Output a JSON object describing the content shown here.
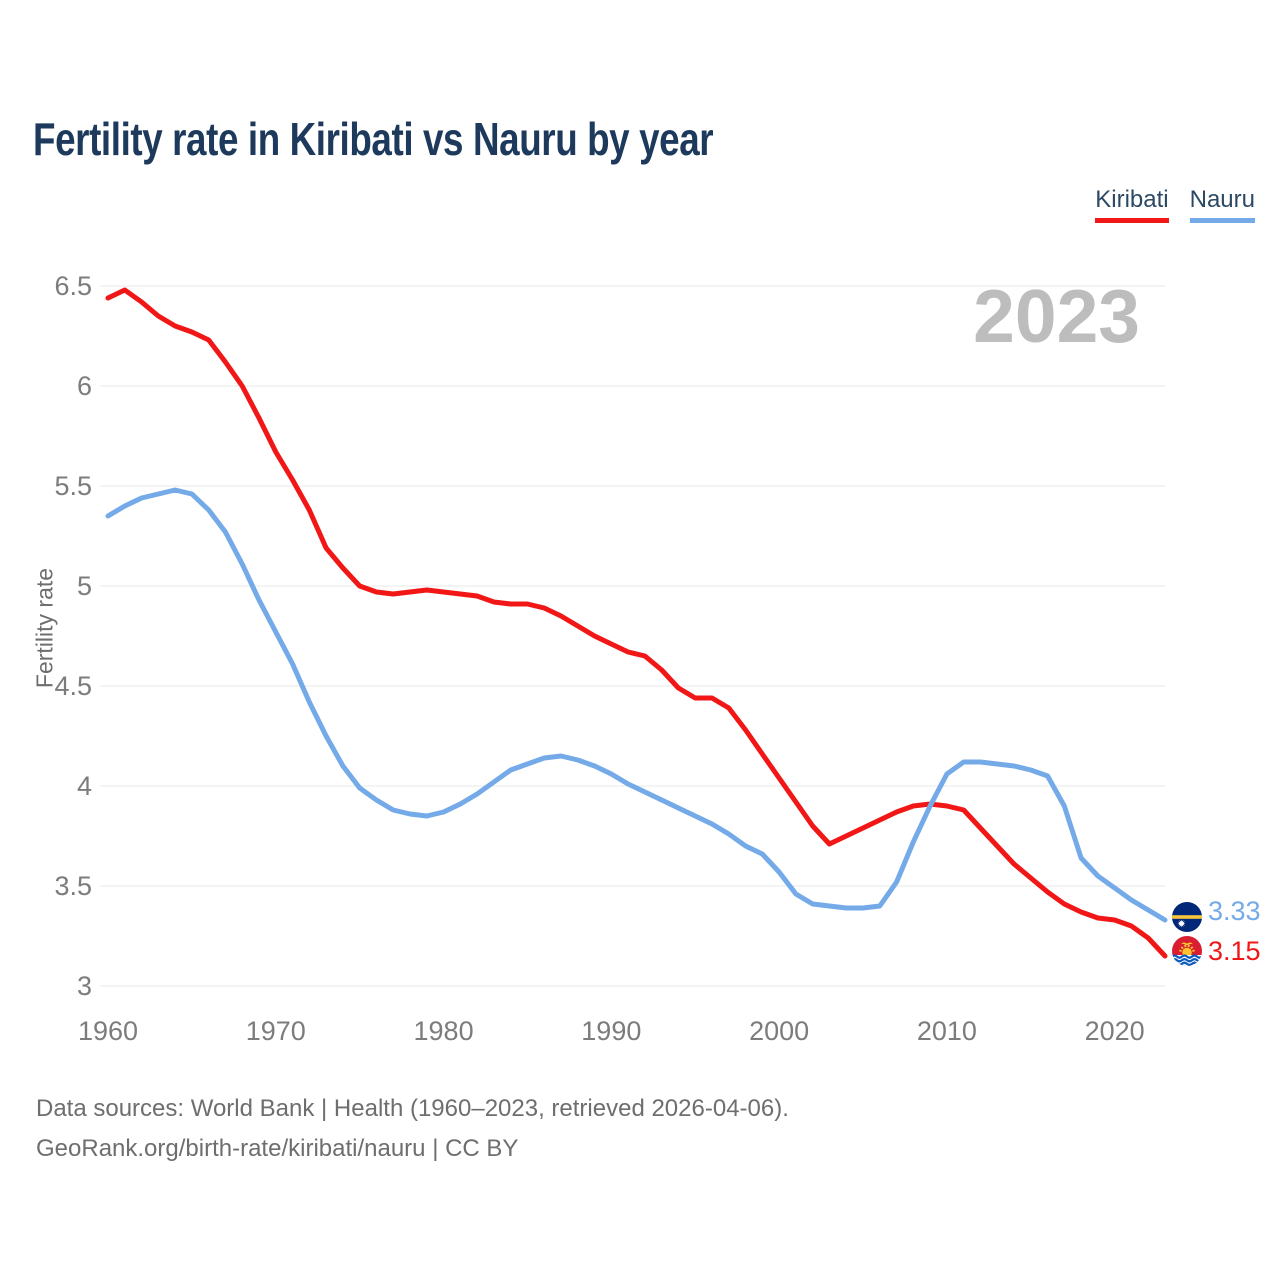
{
  "header": {
    "title": "Fertility rate in Kiribati vs Nauru by year"
  },
  "legend": {
    "items": [
      {
        "label": "Kiribati",
        "color": "#f11717"
      },
      {
        "label": "Nauru",
        "color": "#74aae8"
      }
    ]
  },
  "chart": {
    "watermark": "2023"
  },
  "chart_style": {
    "grid_color": "#e8e8e8",
    "tick_color": "#7c7c7c",
    "watermark_color": "#bdbdbd",
    "title_color": "#1d3a5c",
    "footer_color": "#6e6e6e",
    "kiribati_red": "#f11717",
    "nauru_blue": "#74aae8"
  },
  "y_axis": {
    "title": "Fertility rate",
    "ticks": [
      {
        "label": "6.5",
        "value": 6.5
      },
      {
        "label": "6",
        "value": 6.0
      },
      {
        "label": "5.5",
        "value": 5.5
      },
      {
        "label": "5",
        "value": 5.0
      },
      {
        "label": "4.5",
        "value": 4.5
      },
      {
        "label": "4",
        "value": 4.0
      },
      {
        "label": "3.5",
        "value": 3.5
      },
      {
        "label": "3",
        "value": 3.0
      }
    ]
  },
  "x_axis": {
    "ticks": [
      {
        "label": "1960",
        "value": 1960
      },
      {
        "label": "1970",
        "value": 1970
      },
      {
        "label": "1980",
        "value": 1980
      },
      {
        "label": "1990",
        "value": 1990
      },
      {
        "label": "2000",
        "value": 2000
      },
      {
        "label": "2010",
        "value": 2010
      },
      {
        "label": "2020",
        "value": 2020
      }
    ]
  },
  "end_labels": {
    "nauru": {
      "value": "3.33"
    },
    "kiribati": {
      "value": "3.15"
    }
  },
  "footer": {
    "line1": "Data sources: World Bank | Health (1960–2023, retrieved 2026-04-06).",
    "line2": "GeoRank.org/birth-rate/kiribati/nauru | CC BY"
  },
  "chart_data": {
    "type": "line",
    "title": "Fertility rate in Kiribati vs Nauru by year",
    "xlabel": "",
    "ylabel": "Fertility rate",
    "xlim": [
      1960,
      2023
    ],
    "ylim": [
      3,
      6.5
    ],
    "grid": "horizontal",
    "legend_position": "top-right",
    "watermark": "2023",
    "years": [
      1960,
      1961,
      1962,
      1963,
      1964,
      1965,
      1966,
      1967,
      1968,
      1969,
      1970,
      1971,
      1972,
      1973,
      1974,
      1975,
      1976,
      1977,
      1978,
      1979,
      1980,
      1981,
      1982,
      1983,
      1984,
      1985,
      1986,
      1987,
      1988,
      1989,
      1990,
      1991,
      1992,
      1993,
      1994,
      1995,
      1996,
      1997,
      1998,
      1999,
      2000,
      2001,
      2002,
      2003,
      2004,
      2005,
      2006,
      2007,
      2008,
      2009,
      2010,
      2011,
      2012,
      2013,
      2014,
      2015,
      2016,
      2017,
      2018,
      2019,
      2020,
      2021,
      2022,
      2023
    ],
    "series": [
      {
        "name": "Kiribati",
        "color": "#f11717",
        "end_value": 3.15,
        "values": [
          6.44,
          6.48,
          6.42,
          6.35,
          6.3,
          6.27,
          6.23,
          6.12,
          6.0,
          5.84,
          5.67,
          5.53,
          5.38,
          5.19,
          5.09,
          5.0,
          4.97,
          4.96,
          4.97,
          4.98,
          4.97,
          4.96,
          4.95,
          4.92,
          4.91,
          4.91,
          4.89,
          4.85,
          4.8,
          4.75,
          4.71,
          4.67,
          4.65,
          4.58,
          4.49,
          4.44,
          4.44,
          4.39,
          4.28,
          4.16,
          4.04,
          3.92,
          3.8,
          3.71,
          3.75,
          3.79,
          3.83,
          3.87,
          3.9,
          3.91,
          3.9,
          3.88,
          3.79,
          3.7,
          3.61,
          3.54,
          3.47,
          3.41,
          3.37,
          3.34,
          3.33,
          3.3,
          3.24,
          3.15
        ]
      },
      {
        "name": "Nauru",
        "color": "#74aae8",
        "end_value": 3.33,
        "values": [
          5.35,
          5.4,
          5.44,
          5.46,
          5.48,
          5.46,
          5.38,
          5.27,
          5.11,
          4.93,
          4.77,
          4.61,
          4.42,
          4.25,
          4.1,
          3.99,
          3.93,
          3.88,
          3.86,
          3.85,
          3.87,
          3.91,
          3.96,
          4.02,
          4.08,
          4.11,
          4.14,
          4.15,
          4.13,
          4.1,
          4.06,
          4.01,
          3.97,
          3.93,
          3.89,
          3.85,
          3.81,
          3.76,
          3.7,
          3.66,
          3.57,
          3.46,
          3.41,
          3.4,
          3.39,
          3.39,
          3.4,
          3.52,
          3.72,
          3.9,
          4.06,
          4.12,
          4.12,
          4.11,
          4.1,
          4.08,
          4.05,
          3.9,
          3.64,
          3.55,
          3.49,
          3.43,
          3.38,
          3.33
        ]
      }
    ]
  }
}
